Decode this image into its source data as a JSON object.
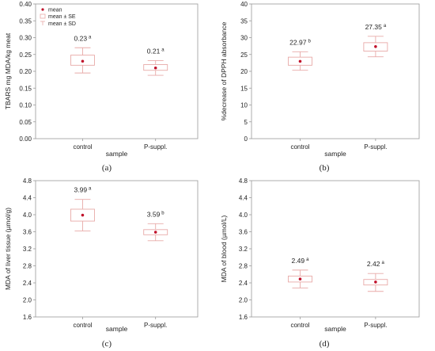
{
  "colors": {
    "frame": "#9a9a9a",
    "gridline": "#d0d0d0",
    "box": "#e8aaa8",
    "mean": "#c0102a",
    "text": "#222222"
  },
  "legend": {
    "mean": "mean",
    "se": "mean ± SE",
    "sd": "mean ± SD"
  },
  "chart_data": [
    {
      "panel_label": "(a)",
      "type": "box",
      "ylabel": "TBARS mg MDA/kg meat",
      "xlabel": "sample",
      "categories": [
        "control",
        "P-suppl."
      ],
      "ylim": [
        0.0,
        0.4
      ],
      "yticks": [
        "0.00",
        "0.05",
        "0.10",
        "0.15",
        "0.20",
        "0.25",
        "0.30",
        "0.35",
        "0.40"
      ],
      "yticks_values": [
        0.0,
        0.05,
        0.1,
        0.15,
        0.2,
        0.25,
        0.3,
        0.35,
        0.4
      ],
      "legend": true,
      "series": [
        {
          "mean": 0.23,
          "se": [
            0.218,
            0.248
          ],
          "sd": [
            0.195,
            0.27
          ],
          "label": "0.23",
          "letter": "a"
        },
        {
          "mean": 0.21,
          "se": [
            0.203,
            0.22
          ],
          "sd": [
            0.188,
            0.232
          ],
          "label": "0.21",
          "letter": "a"
        }
      ]
    },
    {
      "panel_label": "(b)",
      "type": "box",
      "ylabel": "%decrease of DPPH absorbance",
      "xlabel": "sample",
      "categories": [
        "control",
        "P-suppl."
      ],
      "ylim": [
        0,
        40
      ],
      "yticks": [
        "0",
        "5",
        "10",
        "15",
        "20",
        "25",
        "30",
        "35",
        "40"
      ],
      "yticks_values": [
        0,
        5,
        10,
        15,
        20,
        25,
        30,
        35,
        40
      ],
      "legend": false,
      "series": [
        {
          "mean": 22.97,
          "se": [
            21.8,
            24.2
          ],
          "sd": [
            20.3,
            25.8
          ],
          "label": "22.97",
          "letter": "b"
        },
        {
          "mean": 27.35,
          "se": [
            26.0,
            28.5
          ],
          "sd": [
            24.3,
            30.4
          ],
          "label": "27.35",
          "letter": "a"
        }
      ]
    },
    {
      "panel_label": "(c)",
      "type": "box",
      "ylabel": "MDA of liver tissue (µmol/g)",
      "xlabel": "sample",
      "categories": [
        "control",
        "P-suppl."
      ],
      "ylim": [
        1.6,
        4.8
      ],
      "yticks": [
        "1.6",
        "2.0",
        "2.4",
        "2.8",
        "3.2",
        "3.6",
        "4.0",
        "4.4",
        "4.8"
      ],
      "yticks_values": [
        1.6,
        2.0,
        2.4,
        2.8,
        3.2,
        3.6,
        4.0,
        4.4,
        4.8
      ],
      "legend": false,
      "series": [
        {
          "mean": 3.99,
          "se": [
            3.85,
            4.13
          ],
          "sd": [
            3.62,
            4.36
          ],
          "label": "3.99",
          "letter": "a"
        },
        {
          "mean": 3.59,
          "se": [
            3.53,
            3.65
          ],
          "sd": [
            3.39,
            3.79
          ],
          "label": "3.59",
          "letter": "b"
        }
      ]
    },
    {
      "panel_label": "(d)",
      "type": "box",
      "ylabel": "MDA of blood (µmol/L)",
      "xlabel": "sample",
      "categories": [
        "control",
        "P-suppl."
      ],
      "ylim": [
        1.6,
        4.8
      ],
      "yticks": [
        "1.6",
        "2.0",
        "2.4",
        "2.8",
        "3.2",
        "3.6",
        "4.0",
        "4.4",
        "4.8"
      ],
      "yticks_values": [
        1.6,
        2.0,
        2.4,
        2.8,
        3.2,
        3.6,
        4.0,
        4.4,
        4.8
      ],
      "legend": false,
      "series": [
        {
          "mean": 2.49,
          "se": [
            2.42,
            2.56
          ],
          "sd": [
            2.28,
            2.7
          ],
          "label": "2.49",
          "letter": "a"
        },
        {
          "mean": 2.42,
          "se": [
            2.35,
            2.48
          ],
          "sd": [
            2.2,
            2.62
          ],
          "label": "2.42",
          "letter": "a"
        }
      ]
    }
  ]
}
